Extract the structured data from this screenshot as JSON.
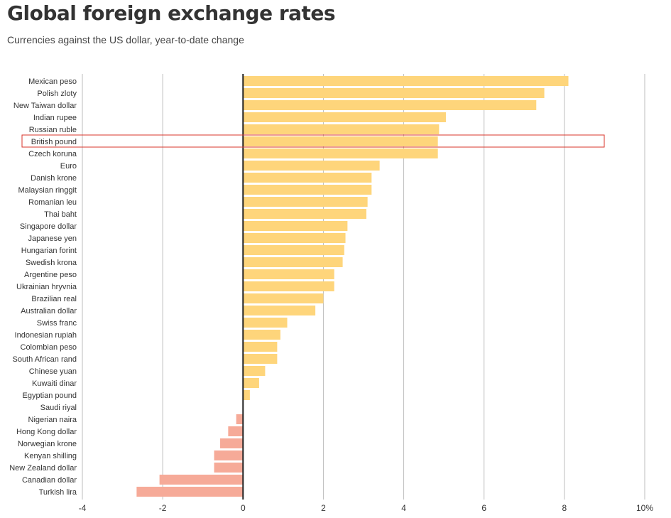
{
  "title": "Global foreign exchange rates",
  "subtitle": "Currencies against the US dollar, year-to-date change",
  "colors": {
    "positive": "#fed57b",
    "negative": "#f6aa98",
    "grid": "#bdbdbd",
    "zero": "#222222",
    "highlight": "#d9342b"
  },
  "highlight": "British pound",
  "chart_data": {
    "type": "bar",
    "orientation": "horizontal",
    "categories": [
      "Mexican peso",
      "Polish zloty",
      "New Taiwan dollar",
      "Indian rupee",
      "Russian ruble",
      "British pound",
      "Czech koruna",
      "Euro",
      "Danish krone",
      "Malaysian ringgit",
      "Romanian leu",
      "Thai baht",
      "Singapore dollar",
      "Japanese yen",
      "Hungarian forint",
      "Swedish krona",
      "Argentine peso",
      "Ukrainian hryvnia",
      "Brazilian real",
      "Australian dollar",
      "Swiss franc",
      "Indonesian rupiah",
      "Colombian peso",
      "South African rand",
      "Chinese yuan",
      "Kuwaiti dinar",
      "Egyptian pound",
      "Saudi riyal",
      "Nigerian naira",
      "Hong Kong dollar",
      "Norwegian krone",
      "Kenyan shilling",
      "New Zealand dollar",
      "Canadian dollar",
      "Turkish lira"
    ],
    "values": [
      8.1,
      7.5,
      7.3,
      5.05,
      4.88,
      4.85,
      4.85,
      3.4,
      3.2,
      3.2,
      3.1,
      3.07,
      2.6,
      2.55,
      2.52,
      2.48,
      2.27,
      2.27,
      2.0,
      1.8,
      1.1,
      0.93,
      0.85,
      0.85,
      0.55,
      0.4,
      0.17,
      0.0,
      -0.17,
      -0.37,
      -0.57,
      -0.72,
      -0.72,
      -2.08,
      -2.65
    ],
    "xlim": [
      -4,
      10
    ],
    "xticks": [
      "-4",
      "-2",
      "0",
      "2",
      "4",
      "6",
      "8",
      "10%"
    ],
    "grid": true
  }
}
